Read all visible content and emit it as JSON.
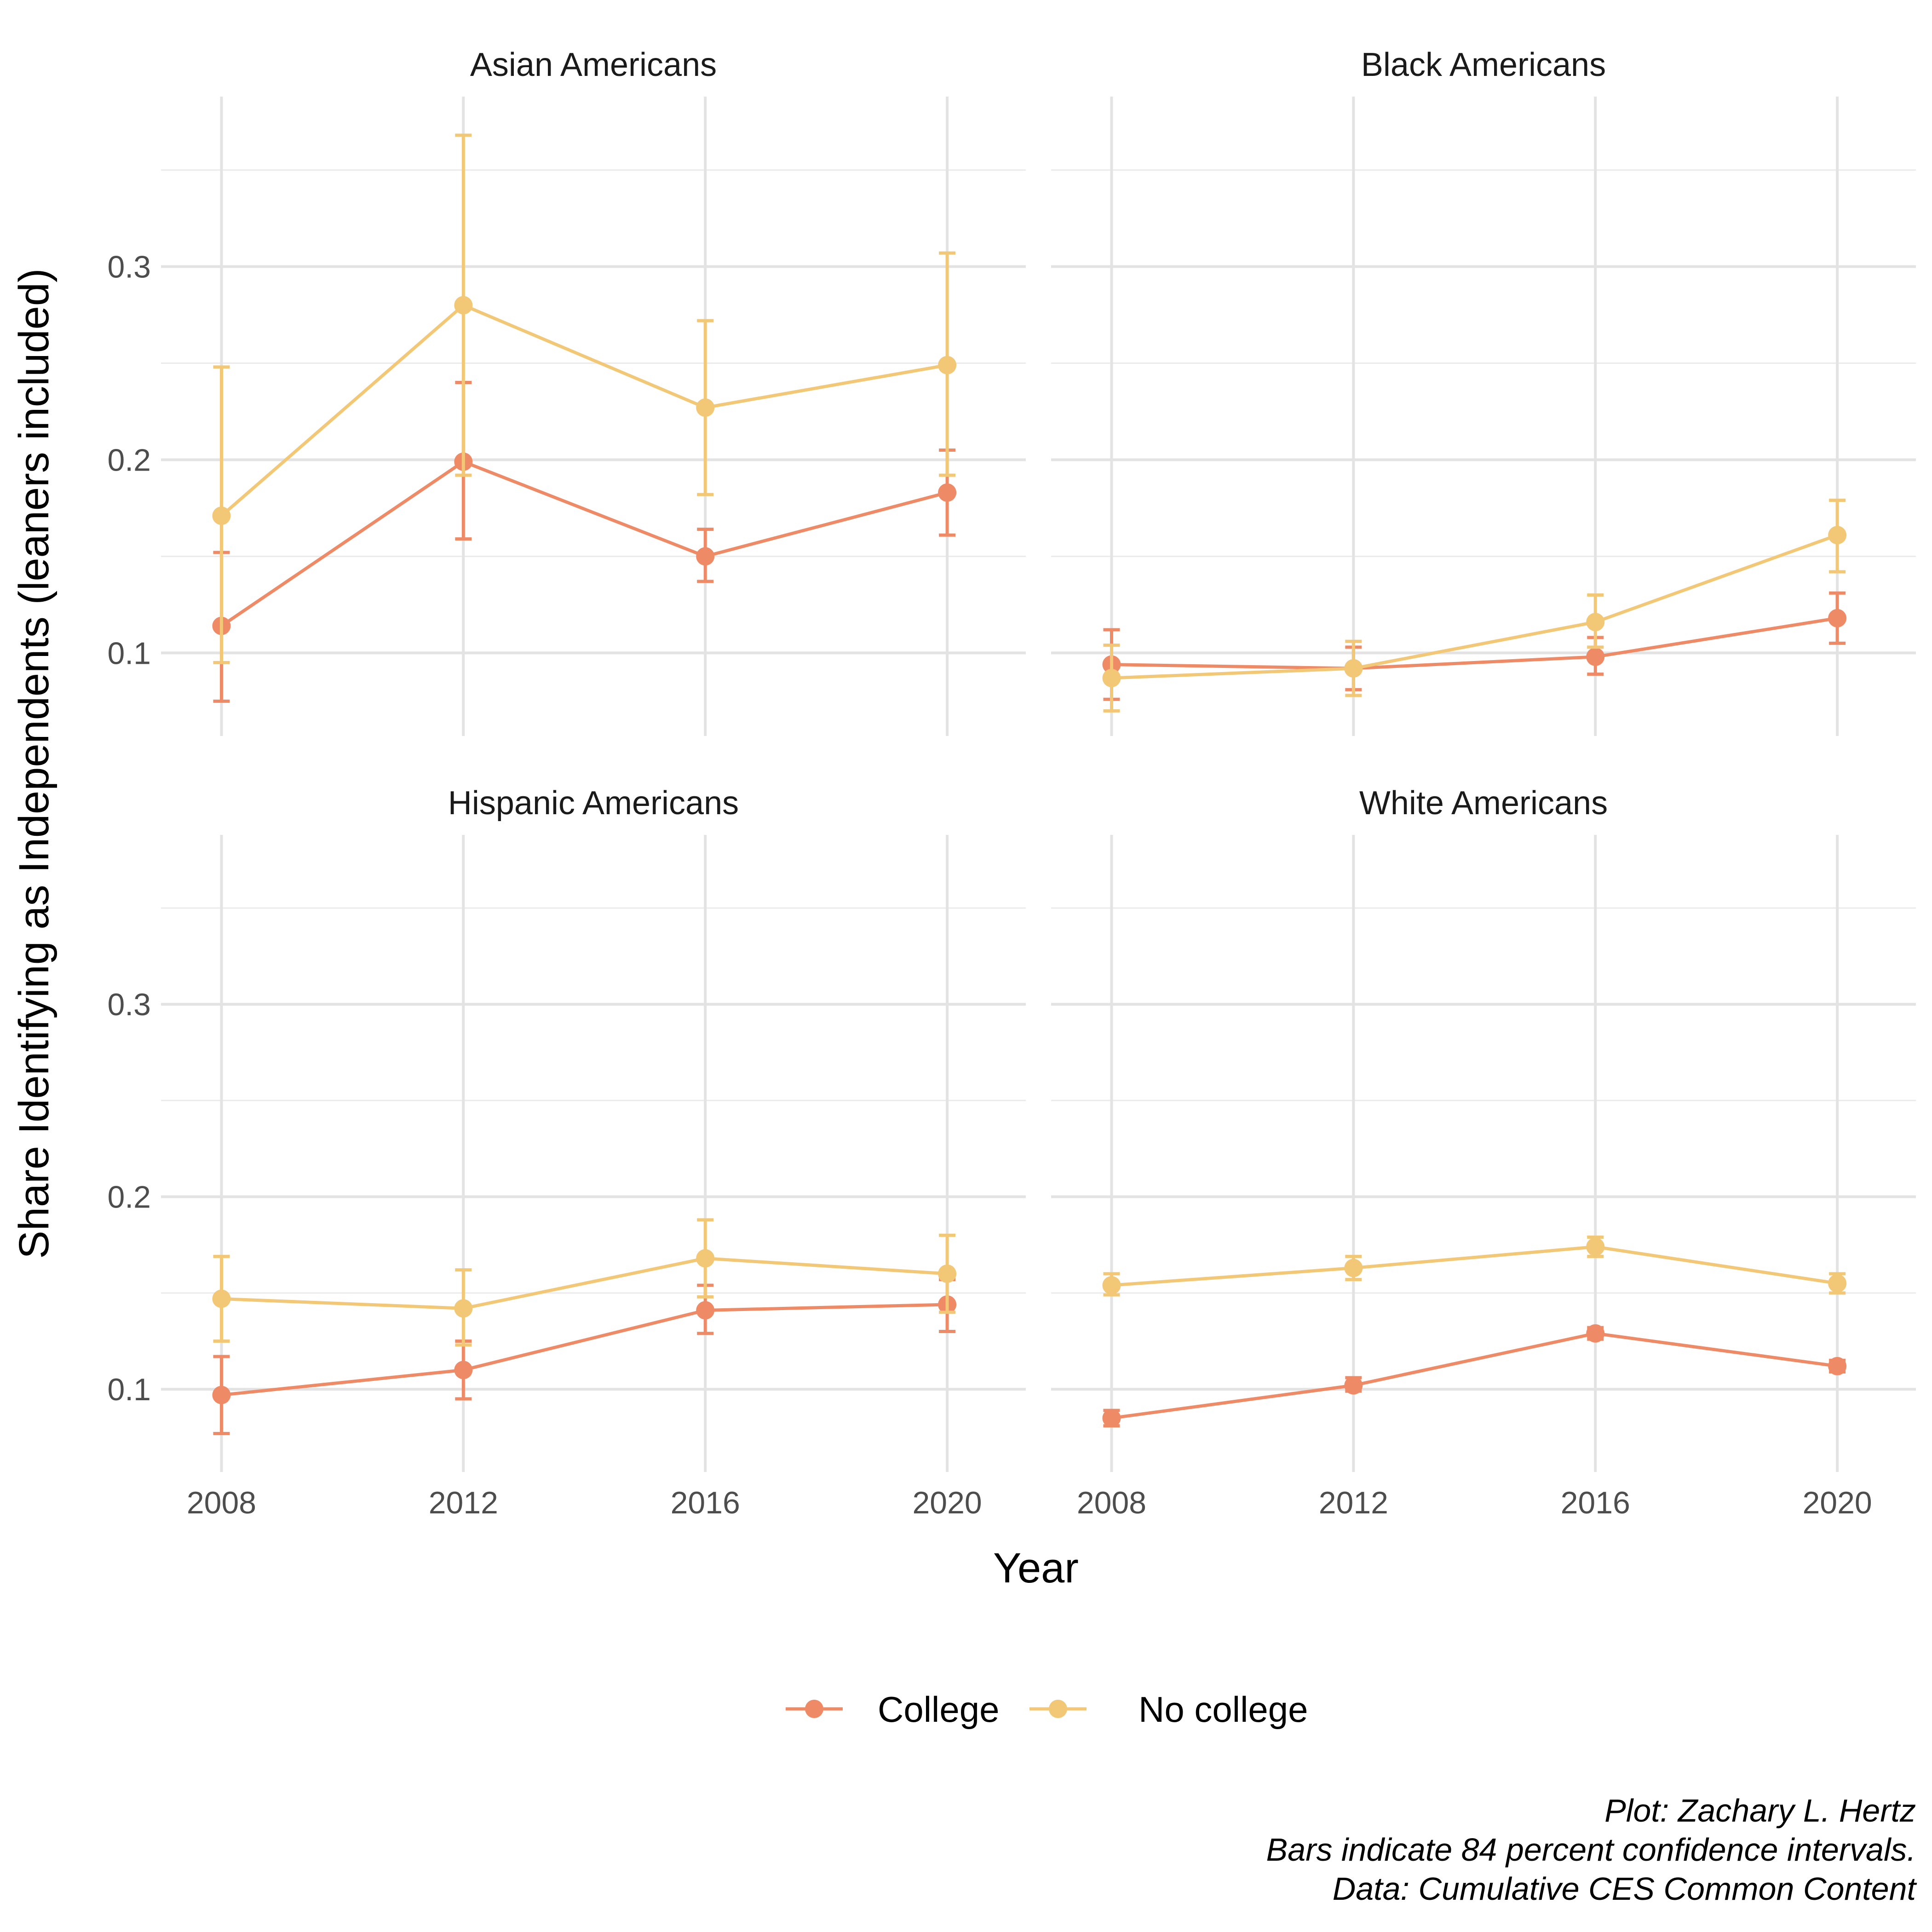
{
  "chart_data": {
    "type": "line",
    "facets": [
      {
        "title": "Asian Americans",
        "series": [
          {
            "name": "College",
            "x": [
              2008,
              2012,
              2016,
              2020
            ],
            "y": [
              0.114,
              0.199,
              0.15,
              0.183
            ],
            "lower": [
              0.075,
              0.159,
              0.137,
              0.161
            ],
            "upper": [
              0.152,
              0.24,
              0.164,
              0.205
            ]
          },
          {
            "name": "No college",
            "x": [
              2008,
              2012,
              2016,
              2020
            ],
            "y": [
              0.171,
              0.28,
              0.227,
              0.249
            ],
            "lower": [
              0.095,
              0.192,
              0.182,
              0.192
            ],
            "upper": [
              0.248,
              0.368,
              0.272,
              0.307
            ]
          }
        ]
      },
      {
        "title": "Black Americans",
        "series": [
          {
            "name": "College",
            "x": [
              2008,
              2012,
              2016,
              2020
            ],
            "y": [
              0.094,
              0.092,
              0.098,
              0.118
            ],
            "lower": [
              0.076,
              0.081,
              0.089,
              0.105
            ],
            "upper": [
              0.112,
              0.103,
              0.108,
              0.131
            ]
          },
          {
            "name": "No college",
            "x": [
              2008,
              2012,
              2016,
              2020
            ],
            "y": [
              0.087,
              0.092,
              0.116,
              0.161
            ],
            "lower": [
              0.07,
              0.078,
              0.103,
              0.142
            ],
            "upper": [
              0.104,
              0.106,
              0.13,
              0.179
            ]
          }
        ]
      },
      {
        "title": "Hispanic Americans",
        "series": [
          {
            "name": "College",
            "x": [
              2008,
              2012,
              2016,
              2020
            ],
            "y": [
              0.097,
              0.11,
              0.141,
              0.144
            ],
            "lower": [
              0.077,
              0.095,
              0.129,
              0.13
            ],
            "upper": [
              0.117,
              0.125,
              0.154,
              0.157
            ]
          },
          {
            "name": "No college",
            "x": [
              2008,
              2012,
              2016,
              2020
            ],
            "y": [
              0.147,
              0.142,
              0.168,
              0.16
            ],
            "lower": [
              0.125,
              0.123,
              0.148,
              0.14
            ],
            "upper": [
              0.169,
              0.162,
              0.188,
              0.18
            ]
          }
        ]
      },
      {
        "title": "White Americans",
        "series": [
          {
            "name": "College",
            "x": [
              2008,
              2012,
              2016,
              2020
            ],
            "y": [
              0.085,
              0.102,
              0.129,
              0.112
            ],
            "lower": [
              0.081,
              0.099,
              0.126,
              0.109
            ],
            "upper": [
              0.089,
              0.106,
              0.132,
              0.115
            ]
          },
          {
            "name": "No college",
            "x": [
              2008,
              2012,
              2016,
              2020
            ],
            "y": [
              0.154,
              0.163,
              0.174,
              0.155
            ],
            "lower": [
              0.149,
              0.157,
              0.169,
              0.15
            ],
            "upper": [
              0.16,
              0.169,
              0.179,
              0.16
            ]
          }
        ]
      }
    ],
    "xlabel": "Year",
    "ylabel": "Share Identifying as Independents (leaners included)",
    "x_ticks": [
      2008,
      2012,
      2016,
      2020
    ],
    "y_ticks": [
      0.1,
      0.2,
      0.3
    ],
    "y_tick_labels": [
      "0.1",
      "0.2",
      "0.3"
    ],
    "xlim": [
      2007.0,
      2021.3
    ],
    "ylim": [
      0.057,
      0.388
    ],
    "grid": true,
    "legend_position": "bottom",
    "legend": [
      {
        "name": "College",
        "color": "#EE8A65"
      },
      {
        "name": "No college",
        "color": "#F2C776"
      }
    ],
    "caption": [
      "Plot: Zachary L. Hertz",
      "Bars indicate 84 percent confidence intervals.",
      "Data: Cumulative CES Common Content"
    ]
  }
}
